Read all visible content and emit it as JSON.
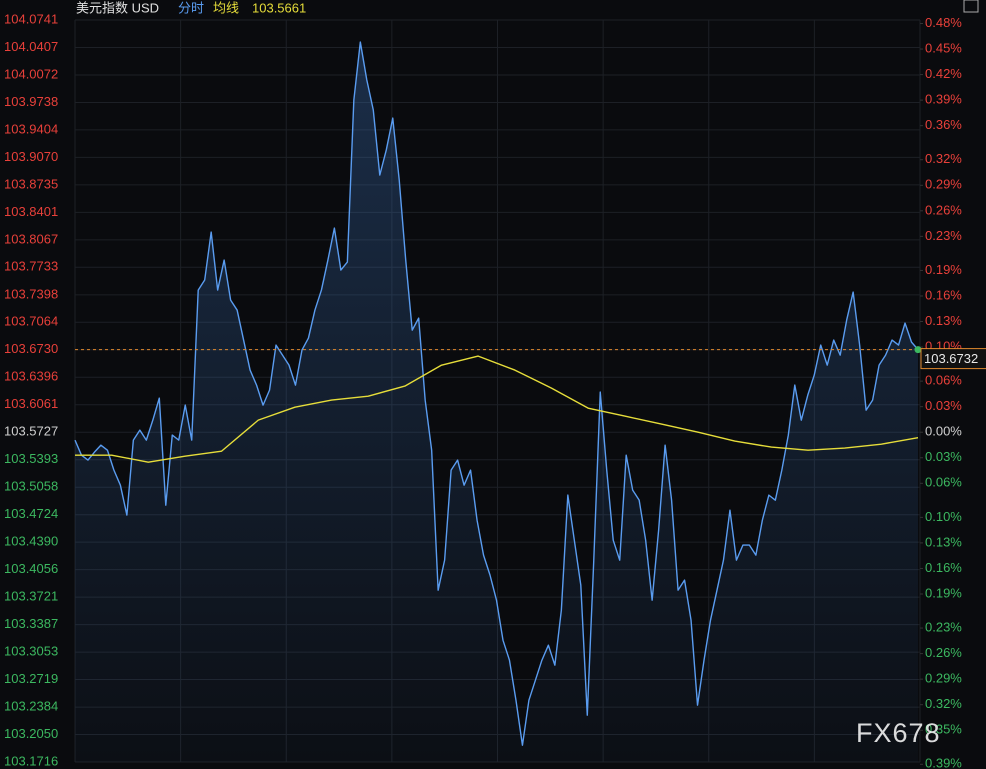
{
  "chart_data": {
    "type": "line",
    "title": "美元指数 USD",
    "current_average": 103.5661,
    "last_price": 103.6732,
    "reference_price": 103.5727,
    "watermark": "FX678",
    "grid": true,
    "up_color": "#e8403a",
    "down_color": "#3cb860",
    "flat_color": "#d0d0d0",
    "series": [
      {
        "name": "分时",
        "color": "#5a9cf0",
        "values": [
          103.5631,
          103.5448,
          103.5388,
          103.5485,
          103.557,
          103.5509,
          103.5266,
          103.5083,
          103.4719,
          103.5631,
          103.5753,
          103.5631,
          103.5874,
          103.6142,
          103.484,
          103.5692,
          103.5631,
          103.6057,
          103.5631,
          103.7456,
          103.7578,
          103.8161,
          103.7456,
          103.7821,
          103.7334,
          103.7213,
          103.6848,
          103.6483,
          103.63,
          103.6057,
          103.6239,
          103.6787,
          103.6665,
          103.6543,
          103.63,
          103.6726,
          103.6872,
          103.7213,
          103.7456,
          103.7821,
          103.821,
          103.7699,
          103.7797,
          103.9767,
          104.0473,
          104.0011,
          103.9646,
          103.8855,
          103.9159,
          103.9548,
          103.8794,
          103.7821,
          103.6969,
          103.7115,
          103.6118,
          103.5509,
          103.3806,
          103.4171,
          103.5266,
          103.5388,
          103.5083,
          103.5266,
          103.4658,
          103.4232,
          103.3989,
          103.3684,
          103.3198,
          103.2954,
          103.2468,
          103.192,
          103.2468,
          103.2711,
          103.2954,
          103.3137,
          103.2894,
          103.3563,
          103.4962,
          103.4414,
          103.3867,
          103.2285,
          103.4171,
          103.6215,
          103.5266,
          103.4414,
          103.4171,
          103.5448,
          103.5023,
          103.4901,
          103.4414,
          103.3684,
          103.4536,
          103.557,
          103.4901,
          103.3806,
          103.3928,
          103.3441,
          103.2407,
          103.2954,
          103.3441,
          103.3806,
          103.4171,
          103.4779,
          103.4171,
          103.4354,
          103.4354,
          103.4232,
          103.4658,
          103.4962,
          103.4901,
          103.5266,
          103.5692,
          103.63,
          103.5874,
          103.6178,
          103.6422,
          103.6787,
          103.6543,
          103.6848,
          103.6665,
          103.7091,
          103.7432,
          103.6787,
          103.5996,
          103.6118,
          103.6543,
          103.6665,
          103.6848,
          103.6787,
          103.7054,
          103.6823,
          103.6732
        ]
      },
      {
        "name": "均线",
        "color": "#e6dd3a",
        "values": [
          103.5448,
          103.5448,
          103.5363,
          103.5436,
          103.5497,
          103.5874,
          103.6032,
          103.6118,
          103.6166,
          103.6288,
          103.6543,
          103.6653,
          103.6483,
          103.6264,
          103.602,
          103.5923,
          103.5826,
          103.5728,
          103.5619,
          103.5546,
          103.5509,
          103.5534,
          103.5582,
          103.5661
        ]
      }
    ],
    "ylim": [
      103.1716,
      104.0741
    ],
    "yticks": [
      104.0741,
      104.0407,
      104.0072,
      103.9738,
      103.9404,
      {
        "value": 103.907,
        "label": "103.9070"
      },
      103.8735,
      103.8401,
      103.8067,
      103.7733,
      103.7398,
      103.7064,
      {
        "value": 103.673,
        "label": "103.6730"
      },
      103.6396,
      103.6061,
      103.5727,
      103.5393,
      103.5058,
      103.4724,
      {
        "value": 103.439,
        "label": "103.4390"
      },
      103.4056,
      103.3721,
      103.3387,
      103.3053,
      103.2719,
      103.2384,
      {
        "value": 103.205,
        "label": "103.2050"
      },
      103.1716
    ],
    "y2lim": [
      -0.3873,
      0.4841
    ],
    "y2ticks": [
      {
        "value": 0.48,
        "label": "0.48%"
      },
      {
        "value": 0.45,
        "label": "0.45%"
      },
      {
        "value": 0.42,
        "label": "0.42%"
      },
      {
        "value": 0.39,
        "label": "0.39%"
      },
      {
        "value": 0.36,
        "label": "0.36%"
      },
      {
        "value": 0.32,
        "label": "0.32%"
      },
      {
        "value": 0.29,
        "label": "0.29%"
      },
      {
        "value": 0.26,
        "label": "0.26%"
      },
      {
        "value": 0.23,
        "label": "0.23%"
      },
      {
        "value": 0.19,
        "label": "0.19%"
      },
      {
        "value": 0.16,
        "label": "0.16%"
      },
      {
        "value": 0.13,
        "label": "0.13%"
      },
      {
        "value": 0.1,
        "label": "0.10%"
      },
      {
        "value": 0.06,
        "label": "0.06%"
      },
      {
        "value": 0.03,
        "label": "0.03%"
      },
      {
        "value": 0,
        "label": "0.00%"
      },
      {
        "value": -0.03,
        "label": "0.03%"
      },
      {
        "value": -0.06,
        "label": "0.06%"
      },
      {
        "value": -0.1,
        "label": "0.10%"
      },
      {
        "value": -0.13,
        "label": "0.13%"
      },
      {
        "value": -0.16,
        "label": "0.16%"
      },
      {
        "value": -0.19,
        "label": "0.19%"
      },
      {
        "value": -0.23,
        "label": "0.23%"
      },
      {
        "value": -0.26,
        "label": "0.26%"
      },
      {
        "value": -0.29,
        "label": "0.29%"
      },
      {
        "value": -0.32,
        "label": "0.32%"
      },
      {
        "value": -0.35,
        "label": "0.35%"
      },
      {
        "value": -0.39,
        "label": "0.39%"
      }
    ]
  }
}
